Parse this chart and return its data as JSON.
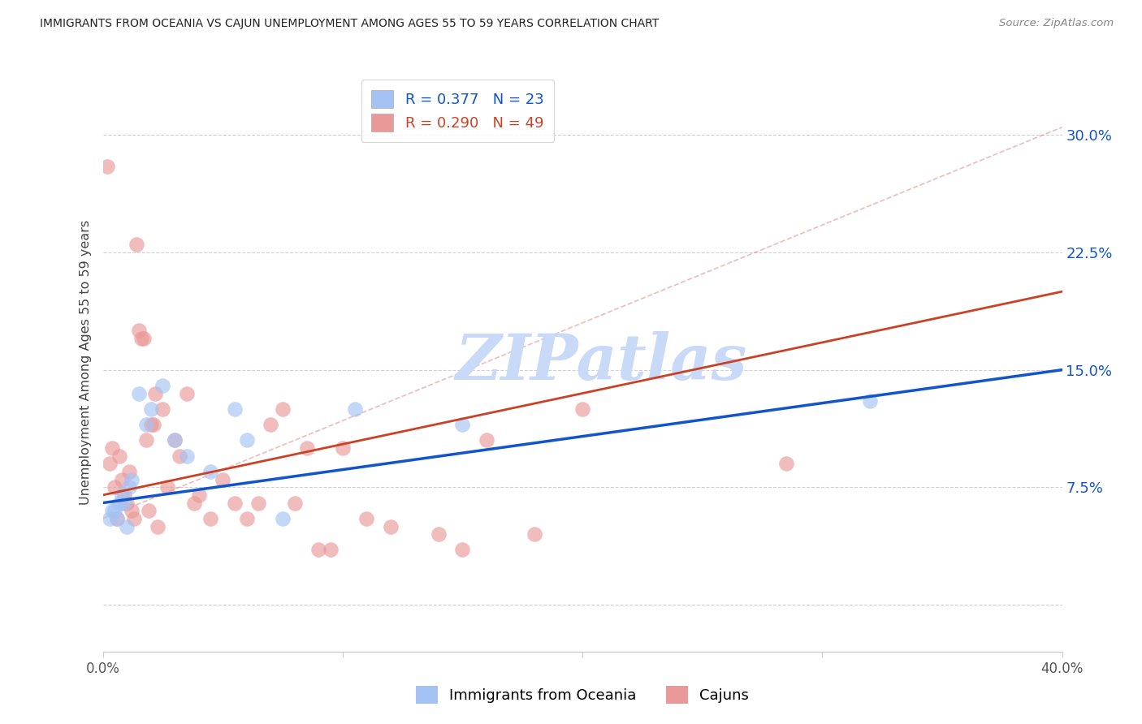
{
  "title": "IMMIGRANTS FROM OCEANIA VS CAJUN UNEMPLOYMENT AMONG AGES 55 TO 59 YEARS CORRELATION CHART",
  "source": "Source: ZipAtlas.com",
  "ylabel": "Unemployment Among Ages 55 to 59 years",
  "xlim": [
    0.0,
    40.0
  ],
  "ylim": [
    -3.0,
    34.0
  ],
  "ytick_vals": [
    0.0,
    7.5,
    15.0,
    22.5,
    30.0
  ],
  "ytick_labels": [
    "",
    "7.5%",
    "15.0%",
    "22.5%",
    "30.0%"
  ],
  "legend_blue_r": "R = 0.377",
  "legend_blue_n": "N = 23",
  "legend_pink_r": "R = 0.290",
  "legend_pink_n": "N = 49",
  "legend_label_blue": "Immigrants from Oceania",
  "legend_label_pink": "Cajuns",
  "blue_fill": "#a4c2f4",
  "pink_fill": "#ea9999",
  "blue_line_color": "#1155cc",
  "pink_line_color": "#cc4125",
  "dash_line_color": "#e06666",
  "watermark": "ZIPatlas",
  "watermark_color": "#c9daf8",
  "blue_scatter_x": [
    0.3,
    0.4,
    0.5,
    0.6,
    0.7,
    0.8,
    0.9,
    1.0,
    1.1,
    1.2,
    1.5,
    1.8,
    2.0,
    2.5,
    3.0,
    3.5,
    4.5,
    5.5,
    6.0,
    7.5,
    10.5,
    15.0,
    32.0
  ],
  "blue_scatter_y": [
    5.5,
    6.0,
    6.0,
    5.5,
    6.5,
    7.0,
    6.5,
    5.0,
    7.5,
    8.0,
    13.5,
    11.5,
    12.5,
    14.0,
    10.5,
    9.5,
    8.5,
    12.5,
    10.5,
    5.5,
    12.5,
    11.5,
    13.0
  ],
  "pink_scatter_x": [
    0.2,
    0.3,
    0.4,
    0.5,
    0.6,
    0.7,
    0.8,
    0.9,
    1.0,
    1.1,
    1.2,
    1.3,
    1.4,
    1.5,
    1.6,
    1.7,
    1.8,
    1.9,
    2.0,
    2.1,
    2.2,
    2.3,
    2.5,
    2.7,
    3.0,
    3.2,
    3.5,
    3.8,
    4.0,
    4.5,
    5.0,
    5.5,
    6.0,
    6.5,
    7.0,
    7.5,
    8.0,
    8.5,
    9.0,
    9.5,
    10.0,
    11.0,
    12.0,
    14.0,
    15.0,
    16.0,
    18.0,
    20.0,
    28.5
  ],
  "pink_scatter_y": [
    28.0,
    9.0,
    10.0,
    7.5,
    5.5,
    9.5,
    8.0,
    7.0,
    6.5,
    8.5,
    6.0,
    5.5,
    23.0,
    17.5,
    17.0,
    17.0,
    10.5,
    6.0,
    11.5,
    11.5,
    13.5,
    5.0,
    12.5,
    7.5,
    10.5,
    9.5,
    13.5,
    6.5,
    7.0,
    5.5,
    8.0,
    6.5,
    5.5,
    6.5,
    11.5,
    12.5,
    6.5,
    10.0,
    3.5,
    3.5,
    10.0,
    5.5,
    5.0,
    4.5,
    3.5,
    10.5,
    4.5,
    12.5,
    9.0
  ],
  "blue_trend_x0": 0.0,
  "blue_trend_x1": 40.0,
  "blue_trend_y0": 6.5,
  "blue_trend_y1": 15.0,
  "pink_trend_x0": 0.0,
  "pink_trend_x1": 40.0,
  "pink_trend_y0": 7.0,
  "pink_trend_y1": 20.0,
  "dash_x0": 0.0,
  "dash_x1": 40.0,
  "dash_y0": 5.5,
  "dash_y1": 30.5
}
